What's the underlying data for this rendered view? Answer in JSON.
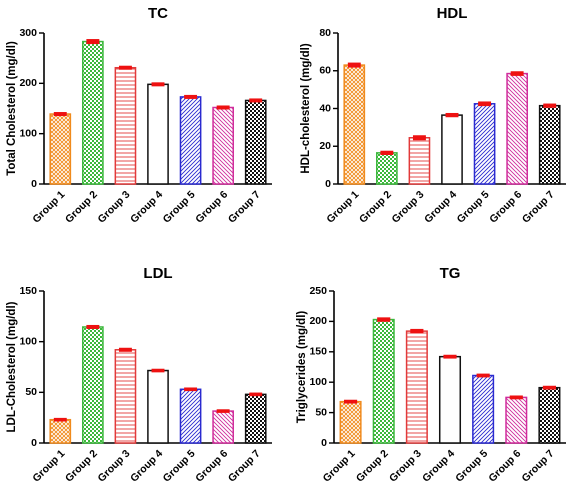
{
  "chart_data": [
    {
      "type": "bar",
      "title": "TC",
      "ylabel": "Total  Cholesterol (mg/dl)",
      "xlabel": "",
      "categories": [
        "Group 1",
        "Group 2",
        "Group 3",
        "Group 4",
        "Group 5",
        "Group 6",
        "Group 7"
      ],
      "values": [
        139,
        283,
        231,
        198,
        173,
        152,
        166
      ],
      "errors": [
        2,
        3,
        2,
        2,
        2,
        2,
        2
      ],
      "ylim": [
        0,
        300
      ],
      "yticks": [
        0,
        100,
        200,
        300
      ]
    },
    {
      "type": "bar",
      "title": "HDL",
      "ylabel": "HDL-cholesterol (mg/dl)",
      "xlabel": "",
      "categories": [
        "Group 1",
        "Group 2",
        "Group 3",
        "Group 4",
        "Group 5",
        "Group 6",
        "Group 7"
      ],
      "values": [
        63,
        16.5,
        24.5,
        36.5,
        42.5,
        58.5,
        41.5
      ],
      "errors": [
        0.8,
        0.6,
        0.8,
        0.6,
        0.7,
        0.7,
        0.6
      ],
      "ylim": [
        0,
        80
      ],
      "yticks": [
        0,
        20,
        40,
        60,
        80
      ]
    },
    {
      "type": "bar",
      "title": "LDL",
      "ylabel": "LDL-Cholesterol (mg/dl)",
      "xlabel": "",
      "categories": [
        "Group 1",
        "Group 2",
        "Group 3",
        "Group 4",
        "Group 5",
        "Group 6",
        "Group 7"
      ],
      "values": [
        23,
        114.5,
        92,
        71.5,
        53,
        31.5,
        48
      ],
      "errors": [
        0.8,
        1,
        1,
        0.8,
        0.8,
        0.8,
        0.8
      ],
      "ylim": [
        0,
        150
      ],
      "yticks": [
        0,
        50,
        100,
        150
      ]
    },
    {
      "type": "bar",
      "title": "TG",
      "ylabel": "Triglycerides  (mg/dl)",
      "xlabel": "",
      "categories": [
        "Group 1",
        "Group 2",
        "Group 3",
        "Group 4",
        "Group 5",
        "Group 6",
        "Group 7"
      ],
      "values": [
        68,
        203,
        184,
        142,
        111,
        75,
        91
      ],
      "errors": [
        1.5,
        2,
        2,
        1.5,
        1.5,
        1.5,
        1.5
      ],
      "ylim": [
        0,
        250
      ],
      "yticks": [
        0,
        50,
        100,
        150,
        200,
        250
      ]
    }
  ],
  "group_colors": [
    "#f08a1c",
    "#3cb83c",
    "#e23a3a",
    "#111111",
    "#2a2ad0",
    "#d02c9c",
    "#111111"
  ],
  "group_fills": [
    "crosshatch-orange",
    "checker-green",
    "hlines-red",
    "open-white",
    "diag-blue",
    "diag-pink",
    "checker-black"
  ],
  "error_bar_color": "#ee1111"
}
